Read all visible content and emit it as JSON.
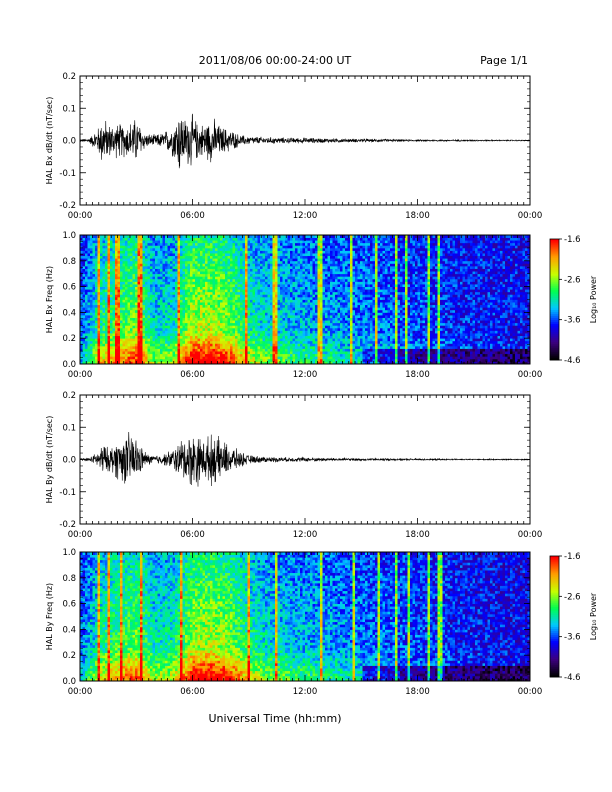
{
  "header": {
    "title": "2011/08/06  00:00-24:00 UT",
    "page": "Page 1/1"
  },
  "colors": {
    "colormap": [
      "#000000",
      "#3c0080",
      "#0000ff",
      "#00c8ff",
      "#00ff50",
      "#c8ff00",
      "#ffa000",
      "#ff0000"
    ]
  },
  "chart_data": [
    {
      "type": "line",
      "id": "bx_dbdt",
      "ylabel": "HAL Bx dB/dt (nT/sec)",
      "ylim": [
        -0.2,
        0.2
      ],
      "yticks": [
        "0.2",
        "0.1",
        "0.0",
        "-0.1",
        "-0.2"
      ],
      "ytick_values": [
        0.2,
        0.1,
        0.0,
        -0.1,
        -0.2
      ],
      "xlim": [
        0,
        24
      ],
      "xticks": [
        "00:00",
        "06:00",
        "12:00",
        "18:00",
        "00:00"
      ],
      "xtick_values": [
        0,
        6,
        12,
        18,
        24
      ],
      "series": [
        {
          "hours": [
            0,
            0.5,
            1.0,
            1.2,
            1.5,
            2.0,
            2.5,
            3.0,
            3.5,
            4.0,
            4.5,
            5.0,
            5.3,
            5.6,
            5.9,
            6.2,
            6.5,
            6.8,
            7.1,
            7.5,
            8.0,
            8.5,
            9.0,
            10.0,
            11.0,
            12.0,
            13.0,
            14.0,
            15.0,
            16.0,
            18.0,
            20.0,
            22.0,
            24.0
          ],
          "amplitude": [
            0.005,
            0.008,
            0.05,
            0.09,
            0.06,
            0.06,
            0.06,
            0.08,
            0.025,
            0.02,
            0.03,
            0.06,
            0.12,
            0.08,
            0.1,
            0.07,
            0.06,
            0.07,
            0.08,
            0.05,
            0.04,
            0.02,
            0.015,
            0.012,
            0.01,
            0.01,
            0.008,
            0.007,
            0.006,
            0.005,
            0.003,
            0.003,
            0.002,
            0.002
          ]
        }
      ]
    },
    {
      "type": "heatmap",
      "id": "bx_spec",
      "ylabel": "HAL Bx Freq (Hz)",
      "ylim": [
        0.0,
        1.0
      ],
      "yticks": [
        "1.0",
        "0.8",
        "0.6",
        "0.4",
        "0.2",
        "0.0"
      ],
      "ytick_values": [
        1.0,
        0.8,
        0.6,
        0.4,
        0.2,
        0.0
      ],
      "xlim": [
        0,
        24
      ],
      "xticks": [
        "00:00",
        "06:00",
        "12:00",
        "18:00",
        "00:00"
      ],
      "xtick_values": [
        0,
        6,
        12,
        18,
        24
      ],
      "colorbar": {
        "label": "Log₁₀ Power",
        "ticks": [
          "-1.6",
          "-2.6",
          "-3.6",
          "-4.6"
        ],
        "tick_values": [
          -1.6,
          -2.6,
          -3.6,
          -4.6
        ],
        "range": [
          -4.6,
          -1.6
        ]
      },
      "activity_hours": [
        0,
        1,
        2,
        3,
        4,
        5,
        6,
        7,
        8,
        9,
        10,
        12,
        14,
        16,
        18,
        20,
        22,
        24
      ],
      "activity_level": [
        0.15,
        0.6,
        0.7,
        0.85,
        0.45,
        0.5,
        0.95,
        0.95,
        0.85,
        0.55,
        0.45,
        0.35,
        0.3,
        0.25,
        0.15,
        0.12,
        0.08,
        0.05
      ],
      "bright_stripes_hours": [
        1.0,
        1.5,
        2.0,
        3.2,
        5.3,
        8.9,
        10.4,
        12.8,
        14.5,
        15.8,
        16.9,
        17.4,
        18.6,
        19.1
      ]
    },
    {
      "type": "line",
      "id": "by_dbdt",
      "ylabel": "HAL By dB/dt (nT/sec)",
      "ylim": [
        -0.2,
        0.2
      ],
      "yticks": [
        "0.2",
        "0.1",
        "0.0",
        "-0.1",
        "-0.2"
      ],
      "ytick_values": [
        0.2,
        0.1,
        0.0,
        -0.1,
        -0.2
      ],
      "xlim": [
        0,
        24
      ],
      "xticks": [
        "00:00",
        "06:00",
        "12:00",
        "18:00",
        "00:00"
      ],
      "xtick_values": [
        0,
        6,
        12,
        18,
        24
      ],
      "series": [
        {
          "hours": [
            0,
            0.5,
            1.0,
            1.2,
            1.5,
            2.0,
            2.5,
            2.8,
            3.2,
            3.6,
            4.0,
            4.5,
            5.0,
            5.4,
            5.8,
            6.2,
            6.5,
            6.8,
            7.1,
            7.5,
            8.0,
            8.5,
            9.0,
            10.0,
            11.0,
            12.0,
            13.0,
            14.0,
            15.0,
            16.0,
            18.0,
            20.0,
            22.0,
            24.0
          ],
          "amplitude": [
            0.004,
            0.006,
            0.03,
            0.06,
            0.04,
            0.07,
            0.09,
            0.1,
            0.05,
            0.02,
            0.015,
            0.02,
            0.04,
            0.07,
            0.09,
            0.1,
            0.07,
            0.08,
            0.09,
            0.07,
            0.05,
            0.03,
            0.015,
            0.01,
            0.008,
            0.008,
            0.006,
            0.005,
            0.004,
            0.004,
            0.003,
            0.002,
            0.002,
            0.002
          ]
        }
      ]
    },
    {
      "type": "heatmap",
      "id": "by_spec",
      "ylabel": "HAL By Freq (Hz)",
      "ylim": [
        0.0,
        1.0
      ],
      "yticks": [
        "1.0",
        "0.8",
        "0.6",
        "0.4",
        "0.2",
        "0.0"
      ],
      "ytick_values": [
        1.0,
        0.8,
        0.6,
        0.4,
        0.2,
        0.0
      ],
      "xlim": [
        0,
        24
      ],
      "xticks": [
        "00:00",
        "06:00",
        "12:00",
        "18:00",
        "00:00"
      ],
      "xtick_values": [
        0,
        6,
        12,
        18,
        24
      ],
      "colorbar": {
        "label": "Log₁₀ Power",
        "ticks": [
          "-1.6",
          "-2.6",
          "-3.6",
          "-4.6"
        ],
        "tick_values": [
          -1.6,
          -2.6,
          -3.6,
          -4.6
        ],
        "range": [
          -4.6,
          -1.6
        ]
      },
      "activity_hours": [
        0,
        1,
        2,
        3,
        4,
        5,
        6,
        7,
        8,
        9,
        10,
        12,
        14,
        16,
        18,
        20,
        22,
        24
      ],
      "activity_level": [
        0.2,
        0.55,
        0.7,
        0.8,
        0.5,
        0.55,
        0.9,
        0.95,
        0.85,
        0.6,
        0.45,
        0.38,
        0.3,
        0.22,
        0.15,
        0.1,
        0.05,
        0.03
      ],
      "bright_stripes_hours": [
        1.0,
        1.5,
        2.2,
        3.3,
        5.4,
        9.0,
        10.5,
        12.9,
        14.6,
        15.9,
        16.9,
        17.5,
        18.6,
        19.2
      ]
    }
  ],
  "xaxis_title": "Universal Time (hh:mm)"
}
